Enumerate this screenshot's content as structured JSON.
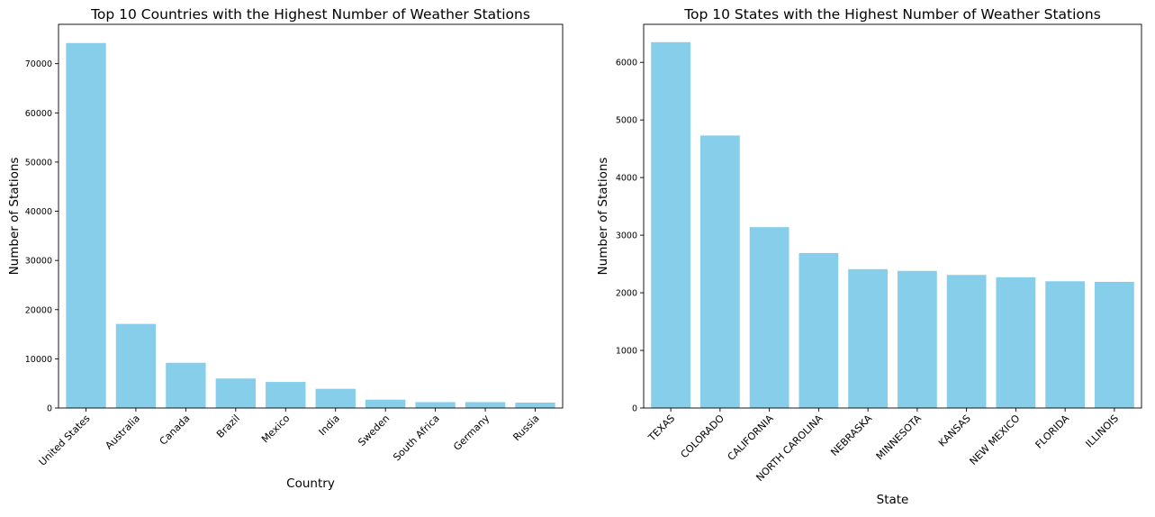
{
  "chart_data": [
    {
      "type": "bar",
      "title": "Top 10 Countries with the Highest Number of Weather Stations",
      "xlabel": "Country",
      "ylabel": "Number of Stations",
      "categories": [
        "United States",
        "Australia",
        "Canada",
        "Brazil",
        "Mexico",
        "India",
        "Sweden",
        "South Africa",
        "Germany",
        "Russia"
      ],
      "values": [
        74200,
        17100,
        9200,
        6000,
        5300,
        3900,
        1700,
        1200,
        1200,
        1100
      ],
      "ylim": [
        0,
        78000
      ],
      "yticks": [
        0,
        10000,
        20000,
        30000,
        40000,
        50000,
        60000,
        70000
      ],
      "color": "#87ceeb"
    },
    {
      "type": "bar",
      "title": "Top 10 States with the Highest Number of Weather Stations",
      "xlabel": "State",
      "ylabel": "Number of Stations",
      "categories": [
        "TEXAS",
        "COLORADO",
        "CALIFORNIA",
        "NORTH CAROLINA",
        "NEBRASKA",
        "MINNESOTA",
        "KANSAS",
        "NEW MEXICO",
        "FLORIDA",
        "ILLINOIS"
      ],
      "values": [
        6350,
        4730,
        3140,
        2690,
        2410,
        2380,
        2310,
        2270,
        2200,
        2190
      ],
      "ylim": [
        0,
        6660
      ],
      "yticks": [
        0,
        1000,
        2000,
        3000,
        4000,
        5000,
        6000
      ],
      "color": "#87ceeb"
    }
  ]
}
